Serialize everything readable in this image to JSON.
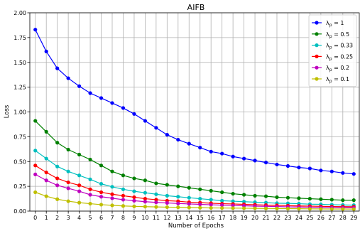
{
  "chart_data": {
    "type": "line",
    "title": "AIFB",
    "xlabel": "Number of Epochs",
    "ylabel": "Loss",
    "xlim": [
      -0.5,
      29.5
    ],
    "ylim": [
      0,
      2.0
    ],
    "xticks": [
      0,
      1,
      2,
      3,
      4,
      5,
      6,
      7,
      8,
      9,
      10,
      11,
      12,
      13,
      14,
      15,
      16,
      17,
      18,
      19,
      20,
      21,
      22,
      23,
      24,
      25,
      26,
      27,
      28,
      29
    ],
    "yticks": [
      "0.00",
      "0.25",
      "0.50",
      "0.75",
      "1.00",
      "1.25",
      "1.50",
      "1.75",
      "2.00"
    ],
    "grid": true,
    "legend_position": "top-right",
    "x": [
      0,
      1,
      2,
      3,
      4,
      5,
      6,
      7,
      8,
      9,
      10,
      11,
      12,
      13,
      14,
      15,
      16,
      17,
      18,
      19,
      20,
      21,
      22,
      23,
      24,
      25,
      26,
      27,
      28,
      29
    ],
    "series": [
      {
        "name_prefix": "λ",
        "name_sub": "p",
        "name_value": " = 1",
        "color": "#0000ff",
        "values": [
          1.83,
          1.61,
          1.44,
          1.34,
          1.26,
          1.19,
          1.14,
          1.09,
          1.04,
          0.98,
          0.91,
          0.84,
          0.77,
          0.72,
          0.68,
          0.64,
          0.6,
          0.58,
          0.55,
          0.53,
          0.51,
          0.49,
          0.47,
          0.455,
          0.44,
          0.43,
          0.41,
          0.4,
          0.385,
          0.375
        ]
      },
      {
        "name_prefix": "λ",
        "name_sub": "p",
        "name_value": " = 0.5",
        "color": "#008000",
        "values": [
          0.91,
          0.8,
          0.69,
          0.62,
          0.57,
          0.52,
          0.46,
          0.4,
          0.36,
          0.33,
          0.31,
          0.28,
          0.265,
          0.25,
          0.235,
          0.22,
          0.205,
          0.19,
          0.175,
          0.165,
          0.155,
          0.15,
          0.14,
          0.135,
          0.13,
          0.125,
          0.12,
          0.115,
          0.11,
          0.11
        ]
      },
      {
        "name_prefix": "λ",
        "name_sub": "p",
        "name_value": " = 0.33",
        "color": "#00bfbf",
        "values": [
          0.61,
          0.53,
          0.45,
          0.4,
          0.36,
          0.32,
          0.275,
          0.245,
          0.22,
          0.2,
          0.185,
          0.17,
          0.155,
          0.145,
          0.135,
          0.125,
          0.115,
          0.105,
          0.1,
          0.095,
          0.09,
          0.085,
          0.08,
          0.078,
          0.075,
          0.07,
          0.068,
          0.065,
          0.062,
          0.06
        ]
      },
      {
        "name_prefix": "λ",
        "name_sub": "p",
        "name_value": " = 0.25",
        "color": "#ff0000",
        "values": [
          0.46,
          0.39,
          0.33,
          0.29,
          0.26,
          0.22,
          0.19,
          0.17,
          0.155,
          0.14,
          0.125,
          0.115,
          0.105,
          0.1,
          0.09,
          0.085,
          0.08,
          0.075,
          0.072,
          0.068,
          0.065,
          0.06,
          0.058,
          0.055,
          0.052,
          0.05,
          0.048,
          0.046,
          0.045,
          0.044
        ]
      },
      {
        "name_prefix": "λ",
        "name_sub": "p",
        "name_value": " = 0.2",
        "color": "#bf00bf",
        "values": [
          0.37,
          0.31,
          0.26,
          0.23,
          0.2,
          0.165,
          0.145,
          0.13,
          0.115,
          0.105,
          0.095,
          0.088,
          0.082,
          0.077,
          0.072,
          0.068,
          0.064,
          0.06,
          0.057,
          0.054,
          0.05,
          0.048,
          0.046,
          0.043,
          0.041,
          0.039,
          0.037,
          0.035,
          0.034,
          0.033
        ]
      },
      {
        "name_prefix": "λ",
        "name_sub": "p",
        "name_value": " = 0.1",
        "color": "#bfbf00",
        "values": [
          0.19,
          0.15,
          0.12,
          0.1,
          0.085,
          0.075,
          0.065,
          0.058,
          0.052,
          0.048,
          0.045,
          0.042,
          0.04,
          0.038,
          0.036,
          0.034,
          0.032,
          0.031,
          0.03,
          0.029,
          0.028,
          0.027,
          0.026,
          0.025,
          0.024,
          0.023,
          0.022,
          0.021,
          0.021,
          0.02
        ]
      }
    ]
  }
}
